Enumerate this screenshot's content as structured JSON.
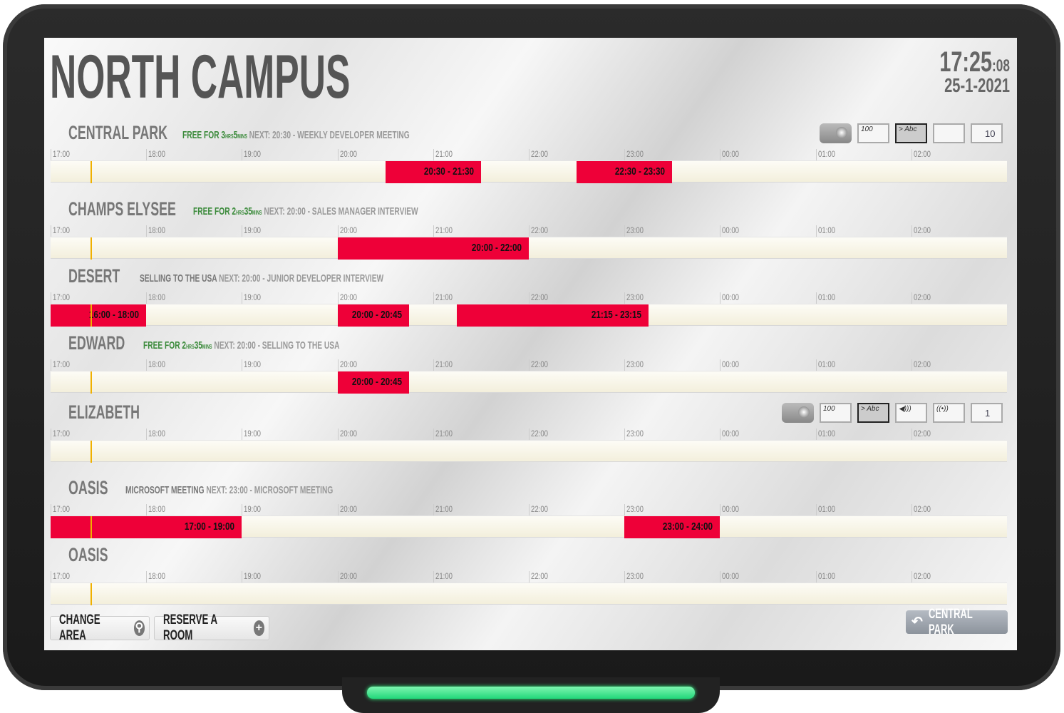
{
  "header": {
    "title": "NORTH CAMPUS",
    "time": "17:25",
    "seconds": ":08",
    "date": "25-1-2021"
  },
  "timeline": {
    "ticks": [
      "17:00",
      "18:00",
      "19:00",
      "20:00",
      "21:00",
      "22:00",
      "23:00",
      "00:00",
      "01:00",
      "02:00"
    ],
    "start_hour": 17,
    "hours_span": 10,
    "now": "17:25"
  },
  "rooms": [
    {
      "name": "CENTRAL PARK",
      "status": {
        "free": "FREE FOR 3",
        "free_h": "HRS",
        "free_m": "5",
        "free_mu": "MINS",
        "current": "",
        "next": "NEXT: 20:30 - WEEKLY DEVELOPER MEETING"
      },
      "bookings": [
        {
          "start": 20.5,
          "end": 21.5,
          "label": "20:30 - 21:30"
        },
        {
          "start": 22.5,
          "end": 23.5,
          "label": "22:30 - 23:30"
        }
      ],
      "icons": [
        {
          "icon": "projector-icon"
        },
        {
          "icon": "whiteboard-icon",
          "text": "100"
        },
        {
          "icon": "display-icon",
          "text": "> Abc"
        },
        {
          "icon": "video-camera-icon"
        },
        {
          "icon": "capacity-icon",
          "text": "10"
        }
      ]
    },
    {
      "name": "CHAMPS ELYSEE",
      "status": {
        "free": "FREE FOR 2",
        "free_h": "HRS",
        "free_m": "35",
        "free_mu": "MINS",
        "current": "",
        "next": "NEXT: 20:00 - SALES MANAGER INTERVIEW"
      },
      "bookings": [
        {
          "start": 20,
          "end": 22,
          "label": "20:00 - 22:00"
        }
      ],
      "icons": []
    },
    {
      "name": "DESERT",
      "status": {
        "free": "",
        "current": "SELLING TO THE USA",
        "next": "NEXT: 20:00 - JUNIOR DEVELOPER INTERVIEW"
      },
      "bookings": [
        {
          "start": 17,
          "end": 18,
          "label": "16:00 - 18:00"
        },
        {
          "start": 20,
          "end": 20.75,
          "label": "20:00 - 20:45"
        },
        {
          "start": 21.25,
          "end": 23.25,
          "label": "21:15 - 23:15"
        }
      ],
      "icons": []
    },
    {
      "name": "EDWARD",
      "status": {
        "free": "FREE FOR 2",
        "free_h": "HRS",
        "free_m": "35",
        "free_mu": "MINS",
        "current": "",
        "next": "NEXT: 20:00 - SELLING TO THE USA"
      },
      "bookings": [
        {
          "start": 20,
          "end": 20.75,
          "label": "20:00 - 20:45"
        }
      ],
      "icons": []
    },
    {
      "name": "ELIZABETH",
      "status": {
        "free": "",
        "current": "",
        "next": ""
      },
      "bookings": [],
      "icons": [
        {
          "icon": "projector-icon"
        },
        {
          "icon": "whiteboard-icon",
          "text": "100"
        },
        {
          "icon": "display-icon",
          "text": "> Abc"
        },
        {
          "icon": "speaker-icon",
          "text": "◀)))"
        },
        {
          "icon": "wifi-icon",
          "text": "((•))"
        },
        {
          "icon": "capacity-icon",
          "text": "1"
        }
      ]
    },
    {
      "name": "OASIS",
      "status": {
        "free": "",
        "current": "MICROSOFT MEETING",
        "next": "NEXT: 23:00 - MICROSOFT MEETING"
      },
      "bookings": [
        {
          "start": 17,
          "end": 19,
          "label": "17:00 - 19:00"
        },
        {
          "start": 23,
          "end": 24,
          "label": "23:00 - 24:00"
        }
      ],
      "icons": []
    },
    {
      "name": "OASIS",
      "status": {
        "free": "",
        "current": "",
        "next": ""
      },
      "bookings": [],
      "icons": []
    }
  ],
  "footer": {
    "change_area": "CHANGE AREA",
    "reserve": "RESERVE A ROOM",
    "back": "CENTRAL PARK"
  },
  "colors": {
    "booking": "#ee0038",
    "free": "#3a8a3a",
    "now_marker": "#f0b000",
    "led": "#22d77a"
  }
}
